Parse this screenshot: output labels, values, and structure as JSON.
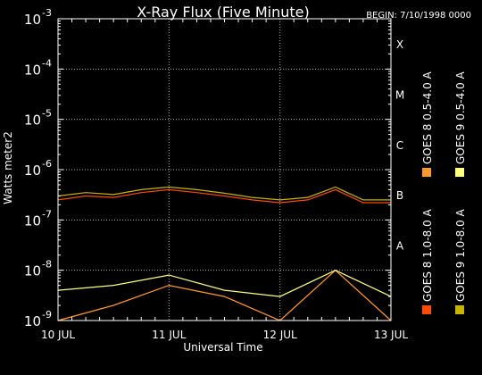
{
  "chart_data": {
    "type": "line",
    "title": "X-Ray Flux (Five Minute)",
    "begin_label": "BEGIN: 7/10/1998 0000",
    "xlabel": "Universal Time",
    "ylabel": "Watts meter2",
    "y_scale": "log",
    "ylim": [
      1e-09,
      0.001
    ],
    "xlim": [
      "1998-07-10T00:00",
      "1998-07-13T00:00"
    ],
    "x_ticks": [
      "10 JUL",
      "11 JUL",
      "12 JUL",
      "13 JUL"
    ],
    "y_ticks": [
      {
        "base": "10",
        "exp": "-9"
      },
      {
        "base": "10",
        "exp": "-8"
      },
      {
        "base": "10",
        "exp": "-7"
      },
      {
        "base": "10",
        "exp": "-6"
      },
      {
        "base": "10",
        "exp": "-5"
      },
      {
        "base": "10",
        "exp": "-4"
      },
      {
        "base": "10",
        "exp": "-3"
      }
    ],
    "flare_classes": [
      "A",
      "B",
      "C",
      "M",
      "X"
    ],
    "grid": true,
    "legend_position": "right",
    "series": [
      {
        "name": "GOES 8  1.0-8.0 A",
        "color": "#ff4a00",
        "x": [
          "1998-07-10T00:00",
          "1998-07-10T06:00",
          "1998-07-10T12:00",
          "1998-07-10T18:00",
          "1998-07-11T00:00",
          "1998-07-11T06:00",
          "1998-07-11T12:00",
          "1998-07-11T18:00",
          "1998-07-12T00:00",
          "1998-07-12T06:00",
          "1998-07-12T12:00",
          "1998-07-12T18:00",
          "1998-07-13T00:00"
        ],
        "values": [
          2.5e-07,
          3e-07,
          2.8e-07,
          3.5e-07,
          4e-07,
          3.5e-07,
          3e-07,
          2.5e-07,
          2.2e-07,
          2.5e-07,
          4e-07,
          2.2e-07,
          2.2e-07
        ]
      },
      {
        "name": "GOES 8  0.5-4.0 A",
        "color": "#ff9a2a",
        "x": [
          "1998-07-10T00:00",
          "1998-07-10T12:00",
          "1998-07-11T00:00",
          "1998-07-11T12:00",
          "1998-07-12T00:00",
          "1998-07-12T12:00",
          "1998-07-13T00:00"
        ],
        "values": [
          1e-09,
          2e-09,
          5e-09,
          3e-09,
          1e-09,
          1e-08,
          1e-09
        ]
      },
      {
        "name": "GOES 9  1.0-8.0 A",
        "color": "#c8b400",
        "x": [
          "1998-07-10T00:00",
          "1998-07-10T06:00",
          "1998-07-10T12:00",
          "1998-07-10T18:00",
          "1998-07-11T00:00",
          "1998-07-11T06:00",
          "1998-07-11T12:00",
          "1998-07-11T18:00",
          "1998-07-12T00:00",
          "1998-07-12T06:00",
          "1998-07-12T12:00",
          "1998-07-12T18:00",
          "1998-07-13T00:00"
        ],
        "values": [
          3e-07,
          3.5e-07,
          3.2e-07,
          4e-07,
          4.5e-07,
          4e-07,
          3.4e-07,
          2.8e-07,
          2.5e-07,
          2.8e-07,
          4.5e-07,
          2.5e-07,
          2.5e-07
        ]
      },
      {
        "name": "GOES 9  0.5-4.0 A",
        "color": "#ffff80",
        "x": [
          "1998-07-10T00:00",
          "1998-07-10T12:00",
          "1998-07-11T00:00",
          "1998-07-11T12:00",
          "1998-07-12T00:00",
          "1998-07-12T12:00",
          "1998-07-13T00:00"
        ],
        "values": [
          4e-09,
          5e-09,
          8e-09,
          4e-09,
          3e-09,
          1e-08,
          3e-09
        ]
      }
    ]
  }
}
